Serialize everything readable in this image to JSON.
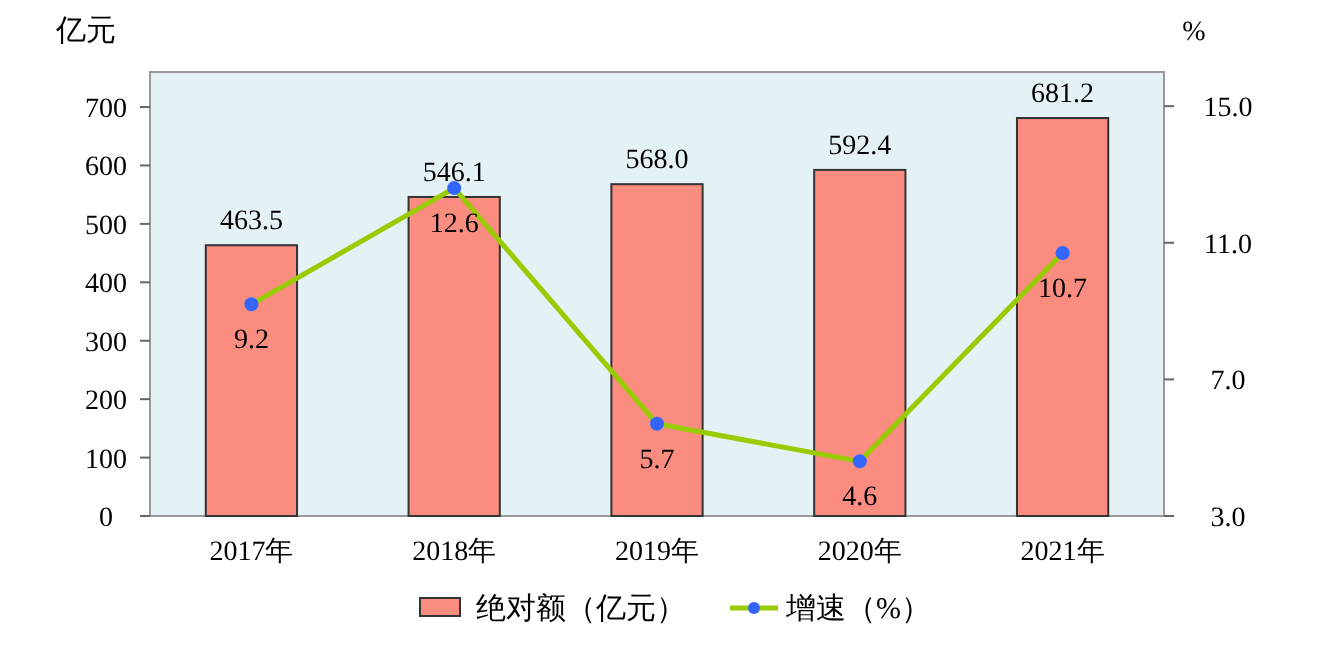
{
  "chart_data": {
    "type": "bar",
    "ylabel": "亿元",
    "y2label": "%",
    "categories": [
      "2017年",
      "2018年",
      "2019年",
      "2020年",
      "2021年"
    ],
    "series": [
      {
        "name": "绝对额（亿元）",
        "type": "bar",
        "color": "#fa8c80",
        "values": [
          463.5,
          546.1,
          568.0,
          592.4,
          681.2
        ],
        "value_labels": [
          "463.5",
          "546.1",
          "568.0",
          "592.4",
          "681.2"
        ]
      },
      {
        "name": "增速（%）",
        "type": "line",
        "axis": "y2",
        "color": "#99cc00",
        "marker": "circle",
        "values": [
          9.2,
          12.6,
          5.7,
          4.6,
          10.7
        ],
        "value_labels": [
          "9.2",
          "12.6",
          "5.7",
          "4.6",
          "10.7"
        ]
      }
    ],
    "ylim": [
      0,
      760
    ],
    "yticks": [
      0,
      100,
      200,
      300,
      400,
      500,
      600,
      700
    ],
    "y2lim": [
      3,
      16
    ],
    "y2ticks": [
      {
        "value": 3,
        "label": "3.0"
      },
      {
        "value": 7,
        "label": "7.0"
      },
      {
        "value": 11,
        "label": "11.0"
      },
      {
        "value": 15,
        "label": "15.0"
      }
    ],
    "legend": "bottom",
    "grid": false
  }
}
